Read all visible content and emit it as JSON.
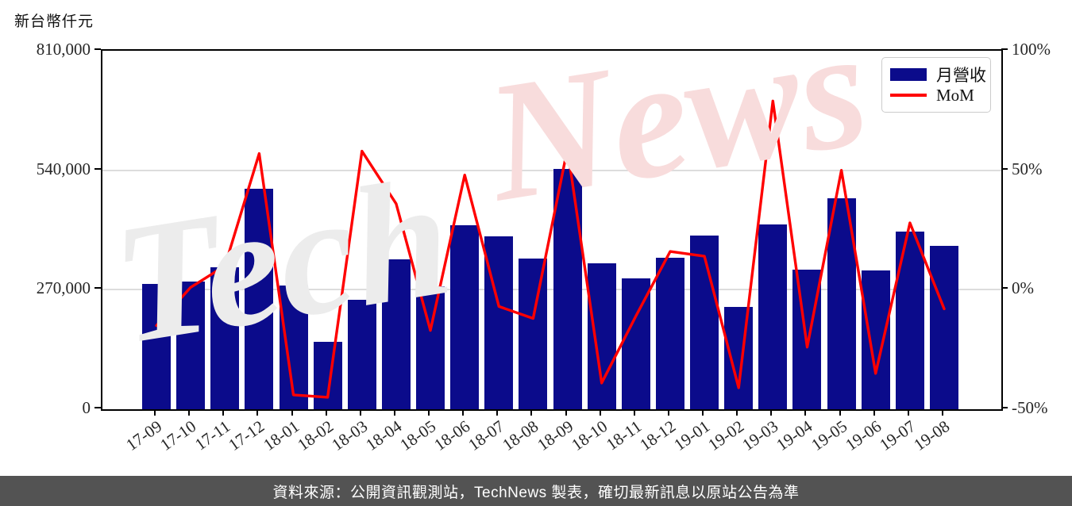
{
  "title": "新台幣仟元",
  "legend": {
    "bar_label": "月營收",
    "line_label": "MoM"
  },
  "watermark": {
    "part1": "Tech",
    "part2": "News"
  },
  "footer": {
    "text": "資料來源：公開資訊觀測站，TechNews 製表，確切最新訊息以原站公告為準"
  },
  "colors": {
    "bar": "#0b0b8b",
    "line": "#ff0000",
    "grid": "#dcdcdc",
    "spine": "#000000",
    "footer_bg": "#535353",
    "watermark_gray": "#ececec",
    "watermark_pink": "#f8dcdc"
  },
  "chart_data": {
    "type": "bar+line combo",
    "title": "新台幣仟元",
    "categories": [
      "17-09",
      "17-10",
      "17-11",
      "17-12",
      "18-01",
      "18-02",
      "18-03",
      "18-04",
      "18-05",
      "18-06",
      "18-07",
      "18-08",
      "18-09",
      "18-10",
      "18-11",
      "18-12",
      "19-01",
      "19-02",
      "19-03",
      "19-04",
      "19-05",
      "19-06",
      "19-07",
      "19-08"
    ],
    "series": [
      {
        "name": "月營收",
        "type": "bar",
        "axis": "left",
        "unit": "新台幣仟元",
        "values": [
          284000,
          289000,
          320000,
          499000,
          280000,
          153000,
          248000,
          338000,
          278000,
          415000,
          390000,
          341000,
          543000,
          329000,
          295000,
          343000,
          392000,
          232000,
          417000,
          316000,
          476000,
          314000,
          402000,
          370000
        ]
      },
      {
        "name": "MoM",
        "type": "line",
        "axis": "right",
        "unit": "%",
        "values": [
          -15,
          1,
          10,
          57,
          -44,
          -45,
          58,
          36,
          -17,
          48,
          -7,
          -12,
          59,
          -39,
          -11,
          16,
          14,
          -41,
          79,
          -24,
          50,
          -35,
          28,
          -8
        ]
      }
    ],
    "left_axis": {
      "label": "新台幣仟元",
      "tick_values": [
        0,
        270000,
        540000,
        810000
      ],
      "tick_labels": [
        "0",
        "270,000",
        "540,000",
        "810,000"
      ],
      "range": [
        0,
        810000
      ]
    },
    "right_axis": {
      "tick_values": [
        -50,
        0,
        50,
        100
      ],
      "tick_labels": [
        "-50%",
        "0%",
        "50%",
        "100%"
      ],
      "range": [
        -50,
        100
      ]
    },
    "grid_values": [
      270000,
      540000
    ],
    "legend_position": "top-right",
    "grid": "horizontal-only"
  }
}
